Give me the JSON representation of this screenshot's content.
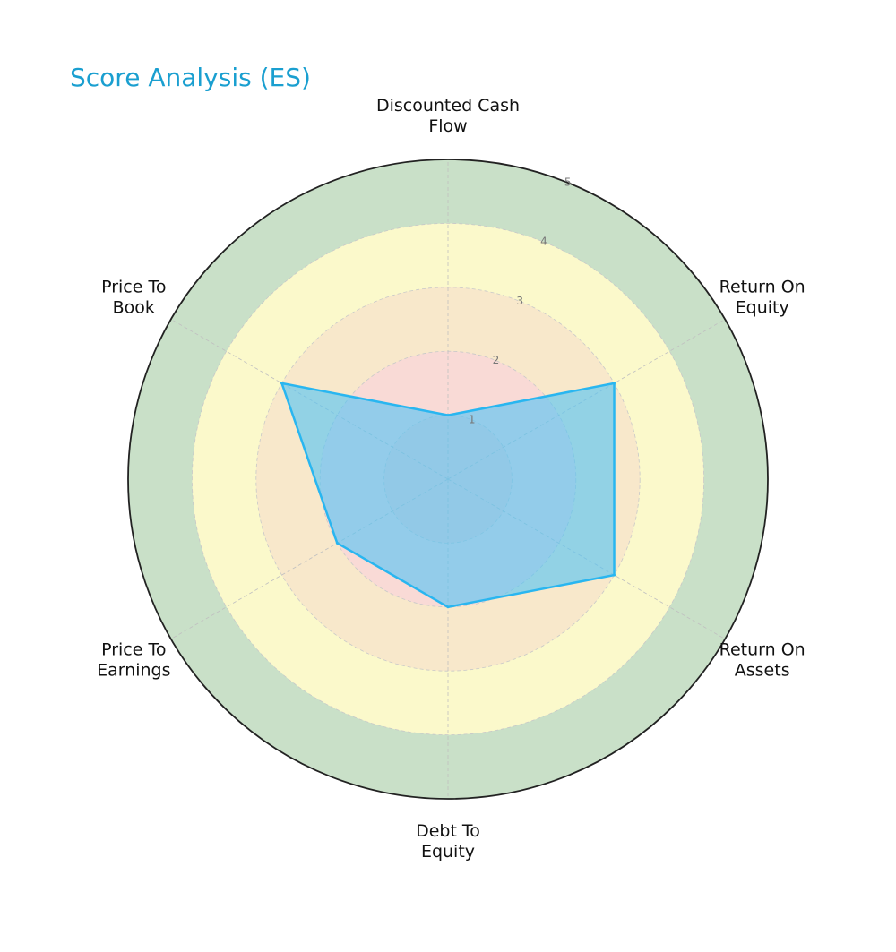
{
  "chart_data": {
    "type": "radar",
    "title": "Score Analysis (ES)",
    "axes": [
      [
        "Discounted Cash",
        "Flow"
      ],
      [
        "Return On",
        "Equity"
      ],
      [
        "Return On",
        "Assets"
      ],
      [
        "Debt To",
        "Equity"
      ],
      [
        "Price To",
        "Earnings"
      ],
      [
        "Price To",
        "Book"
      ]
    ],
    "values": [
      1,
      3,
      3,
      2,
      2,
      3
    ],
    "rlim": [
      0,
      5
    ],
    "rticks": [
      "1",
      "2",
      "3",
      "4",
      "5"
    ],
    "bands": [
      {
        "from": 0,
        "to": 1,
        "color": "#f7d1cf"
      },
      {
        "from": 1,
        "to": 2,
        "color": "#f9dad6"
      },
      {
        "from": 2,
        "to": 3,
        "color": "#f8e8cb"
      },
      {
        "from": 3,
        "to": 4,
        "color": "#fbf9cb"
      },
      {
        "from": 4,
        "to": 5,
        "color": "#c9e0c8"
      }
    ],
    "series_color": "#29b6f0",
    "fill_color": "#4fc3f7",
    "title_color": "#1a9fd0"
  }
}
